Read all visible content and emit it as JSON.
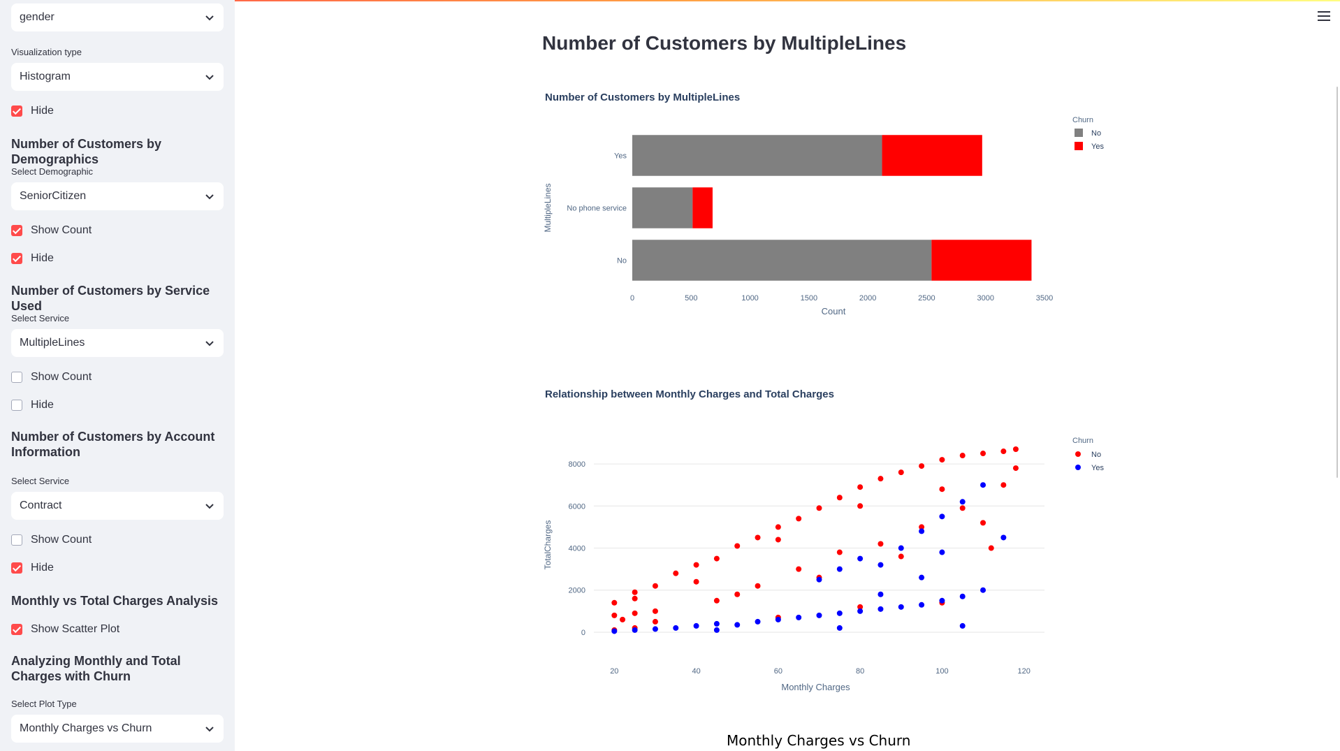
{
  "sidebar": {
    "select_gender": "gender",
    "viz_label": "Visualization type",
    "viz_value": "Histogram",
    "hide1": "Hide",
    "demo_header": "Number of Customers by Demographics",
    "demo_label": "Select Demographic",
    "demo_value": "SeniorCitizen",
    "demo_show_count": "Show Count",
    "demo_hide": "Hide",
    "service_header": "Number of Customers by Service Used",
    "service_label": "Select Service",
    "service_value": "MultipleLines",
    "service_show_count": "Show Count",
    "service_hide": "Hide",
    "account_header": "Number of Customers by Account Information",
    "account_label": "Select Service",
    "account_value": "Contract",
    "account_show_count": "Show Count",
    "account_hide": "Hide",
    "charges_header": "Monthly vs Total Charges Analysis",
    "charges_scatter": "Show Scatter Plot",
    "churn_header": "Analyzing Monthly and Total Charges with Churn",
    "plot_type_label": "Select Plot Type",
    "plot_type_value": "Monthly Charges vs Churn"
  },
  "checkbox_states": {
    "hide1": true,
    "demo_show_count": true,
    "demo_hide": true,
    "service_show_count": false,
    "service_hide": false,
    "account_show_count": false,
    "account_hide": true,
    "charges_scatter": true
  },
  "main": {
    "title": "Number of Customers by MultipleLines",
    "bottom_title": "Monthly Charges vs Churn"
  },
  "colors": {
    "no": "#808080",
    "yes": "#ff0000",
    "scatter_no": "#ff0000",
    "scatter_yes": "#0000ff",
    "accent": "#ff4b4b"
  },
  "chart_data": [
    {
      "type": "bar",
      "orientation": "horizontal",
      "stacked": true,
      "title": "Number of Customers by MultipleLines",
      "xlabel": "Count",
      "ylabel": "MultipleLines",
      "categories": [
        "No",
        "No phone service",
        "Yes"
      ],
      "series": [
        {
          "name": "No",
          "values": [
            2541,
            512,
            2121
          ]
        },
        {
          "name": "Yes",
          "values": [
            849,
            170,
            850
          ]
        }
      ],
      "xlim": [
        0,
        3500
      ],
      "xticks": [
        0,
        500,
        1000,
        1500,
        2000,
        2500,
        3000,
        3500
      ],
      "legend_title": "Churn",
      "legend_position": "top-right"
    },
    {
      "type": "scatter",
      "title": "Relationship between Monthly Charges and Total Charges",
      "xlabel": "Monthly Charges",
      "ylabel": "TotalCharges",
      "xlim": [
        15,
        125
      ],
      "ylim": [
        -500,
        8800
      ],
      "xticks": [
        20,
        40,
        60,
        80,
        100,
        120
      ],
      "yticks": [
        0,
        2000,
        4000,
        6000,
        8000
      ],
      "legend_title": "Churn",
      "legend_position": "top-right",
      "series": [
        {
          "name": "No",
          "x": [
            20,
            20,
            20,
            22,
            25,
            25,
            25,
            25,
            30,
            30,
            35,
            40,
            45,
            50,
            55,
            60,
            65,
            70,
            75,
            80,
            85,
            90,
            95,
            100,
            105,
            110,
            115,
            118,
            45,
            55,
            65,
            75,
            85,
            95,
            105,
            115,
            30,
            50,
            70,
            90,
            110,
            60,
            80,
            100,
            40,
            60,
            80,
            100,
            118,
            112
          ],
          "y": [
            100,
            800,
            1400,
            600,
            1600,
            200,
            900,
            1900,
            2200,
            500,
            2800,
            3200,
            3500,
            4100,
            4500,
            5000,
            5400,
            5900,
            6400,
            6900,
            7300,
            7600,
            7900,
            8200,
            8400,
            8500,
            8600,
            8700,
            1500,
            2200,
            3000,
            3800,
            4200,
            5000,
            5900,
            7000,
            1000,
            1800,
            2600,
            3600,
            5200,
            700,
            1200,
            1400,
            2400,
            4400,
            6000,
            6800,
            7800,
            4000
          ]
        },
        {
          "name": "Yes",
          "x": [
            20,
            25,
            30,
            35,
            40,
            45,
            50,
            55,
            60,
            65,
            70,
            75,
            80,
            85,
            90,
            95,
            100,
            105,
            110,
            115,
            70,
            75,
            80,
            85,
            90,
            95,
            100,
            105,
            110,
            45,
            75,
            85,
            95,
            100,
            105
          ],
          "y": [
            50,
            100,
            150,
            200,
            300,
            400,
            350,
            500,
            600,
            700,
            800,
            900,
            1000,
            1100,
            1200,
            1300,
            1500,
            1700,
            2000,
            4500,
            2500,
            3000,
            3500,
            3200,
            4000,
            4800,
            5500,
            6200,
            7000,
            100,
            200,
            1800,
            2600,
            3800,
            300
          ]
        }
      ]
    }
  ]
}
